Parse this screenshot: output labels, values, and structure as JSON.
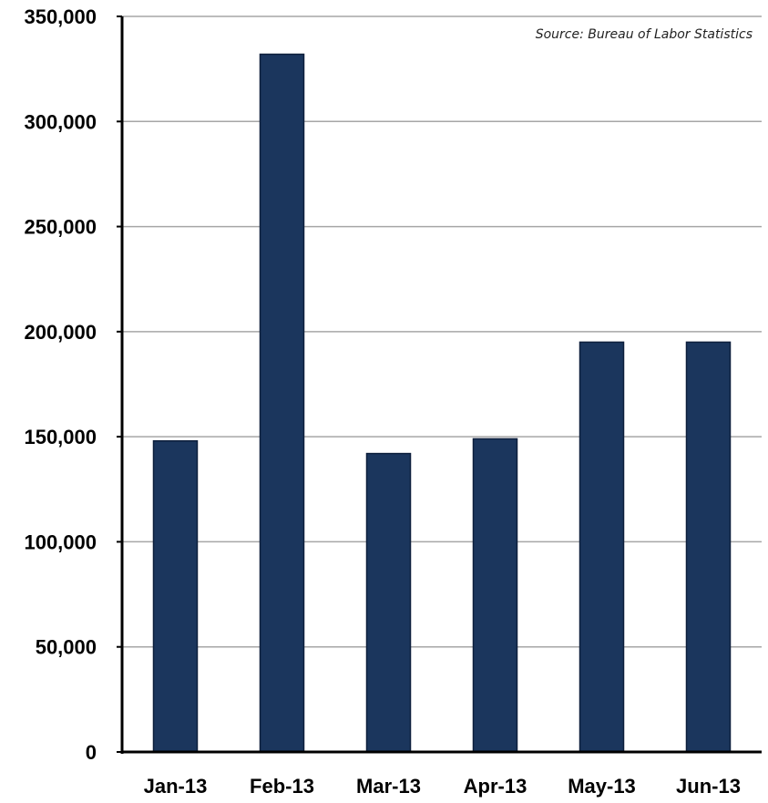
{
  "chart_data": {
    "type": "bar",
    "categories": [
      "Jan-13",
      "Feb-13",
      "Mar-13",
      "Apr-13",
      "May-13",
      "Jun-13"
    ],
    "values": [
      148000,
      332000,
      142000,
      149000,
      195000,
      195000
    ],
    "ylim": [
      0,
      350000
    ],
    "yticks": [
      0,
      50000,
      100000,
      150000,
      200000,
      250000,
      300000,
      350000
    ],
    "ytick_labels": [
      "0",
      "50,000",
      "100,000",
      "150,000",
      "200,000",
      "250,000",
      "300,000",
      "350,000"
    ],
    "annotation": "Source: Bureau of Labor Statistics",
    "grid": true,
    "legend": "none",
    "bar_color": "#1b365d",
    "bar_edge_color": "#0d1f3c",
    "grid_color": "#a6a6a6",
    "axis_color": "#000000"
  }
}
